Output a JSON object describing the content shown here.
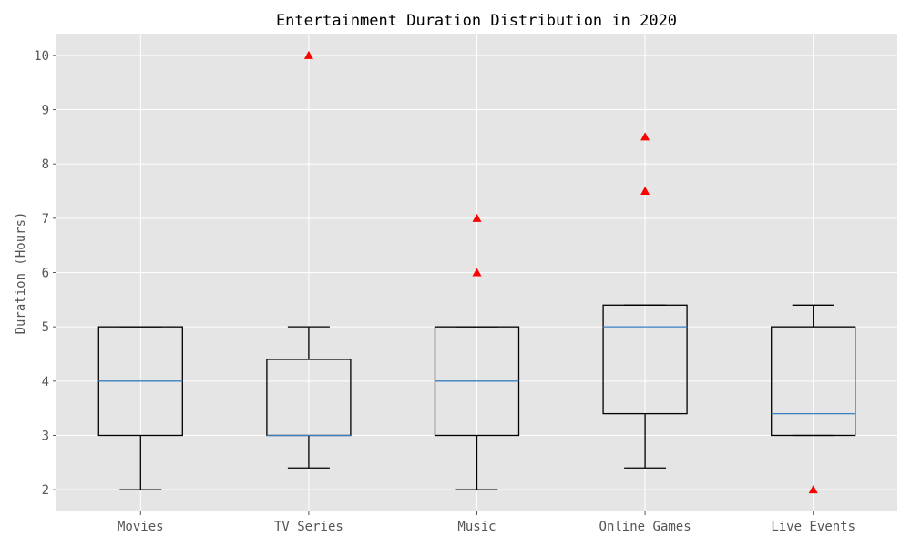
{
  "chart_data": {
    "type": "box",
    "title": "Entertainment Duration Distribution in 2020",
    "xlabel": "",
    "ylabel": "Duration (Hours)",
    "ylim": [
      1.6,
      10.4
    ],
    "yticks": [
      2,
      3,
      4,
      5,
      6,
      7,
      8,
      9,
      10
    ],
    "grid": true,
    "categories": [
      "Movies",
      "TV Series",
      "Music",
      "Online Games",
      "Live Events"
    ],
    "boxes": [
      {
        "whisker_low": 2.0,
        "q1": 3.0,
        "median": 4.0,
        "q3": 5.0,
        "whisker_high": 5.0,
        "outliers": []
      },
      {
        "whisker_low": 2.4,
        "q1": 3.0,
        "median": 3.0,
        "q3": 4.4,
        "whisker_high": 5.0,
        "outliers": [
          10.0
        ]
      },
      {
        "whisker_low": 2.0,
        "q1": 3.0,
        "median": 4.0,
        "q3": 5.0,
        "whisker_high": 5.0,
        "outliers": [
          6.0,
          7.0
        ]
      },
      {
        "whisker_low": 2.4,
        "q1": 3.4,
        "median": 5.0,
        "q3": 5.4,
        "whisker_high": 5.4,
        "outliers": [
          7.5,
          8.5
        ]
      },
      {
        "whisker_low": 3.0,
        "q1": 3.0,
        "median": 3.4,
        "q3": 5.0,
        "whisker_high": 5.4,
        "outliers": [
          2.0
        ]
      }
    ],
    "colors": {
      "background": "#E5E5E5",
      "grid": "#FFFFFF",
      "box": "#000000",
      "median": "#3A7FC1",
      "outlier": "#FF0000"
    }
  }
}
